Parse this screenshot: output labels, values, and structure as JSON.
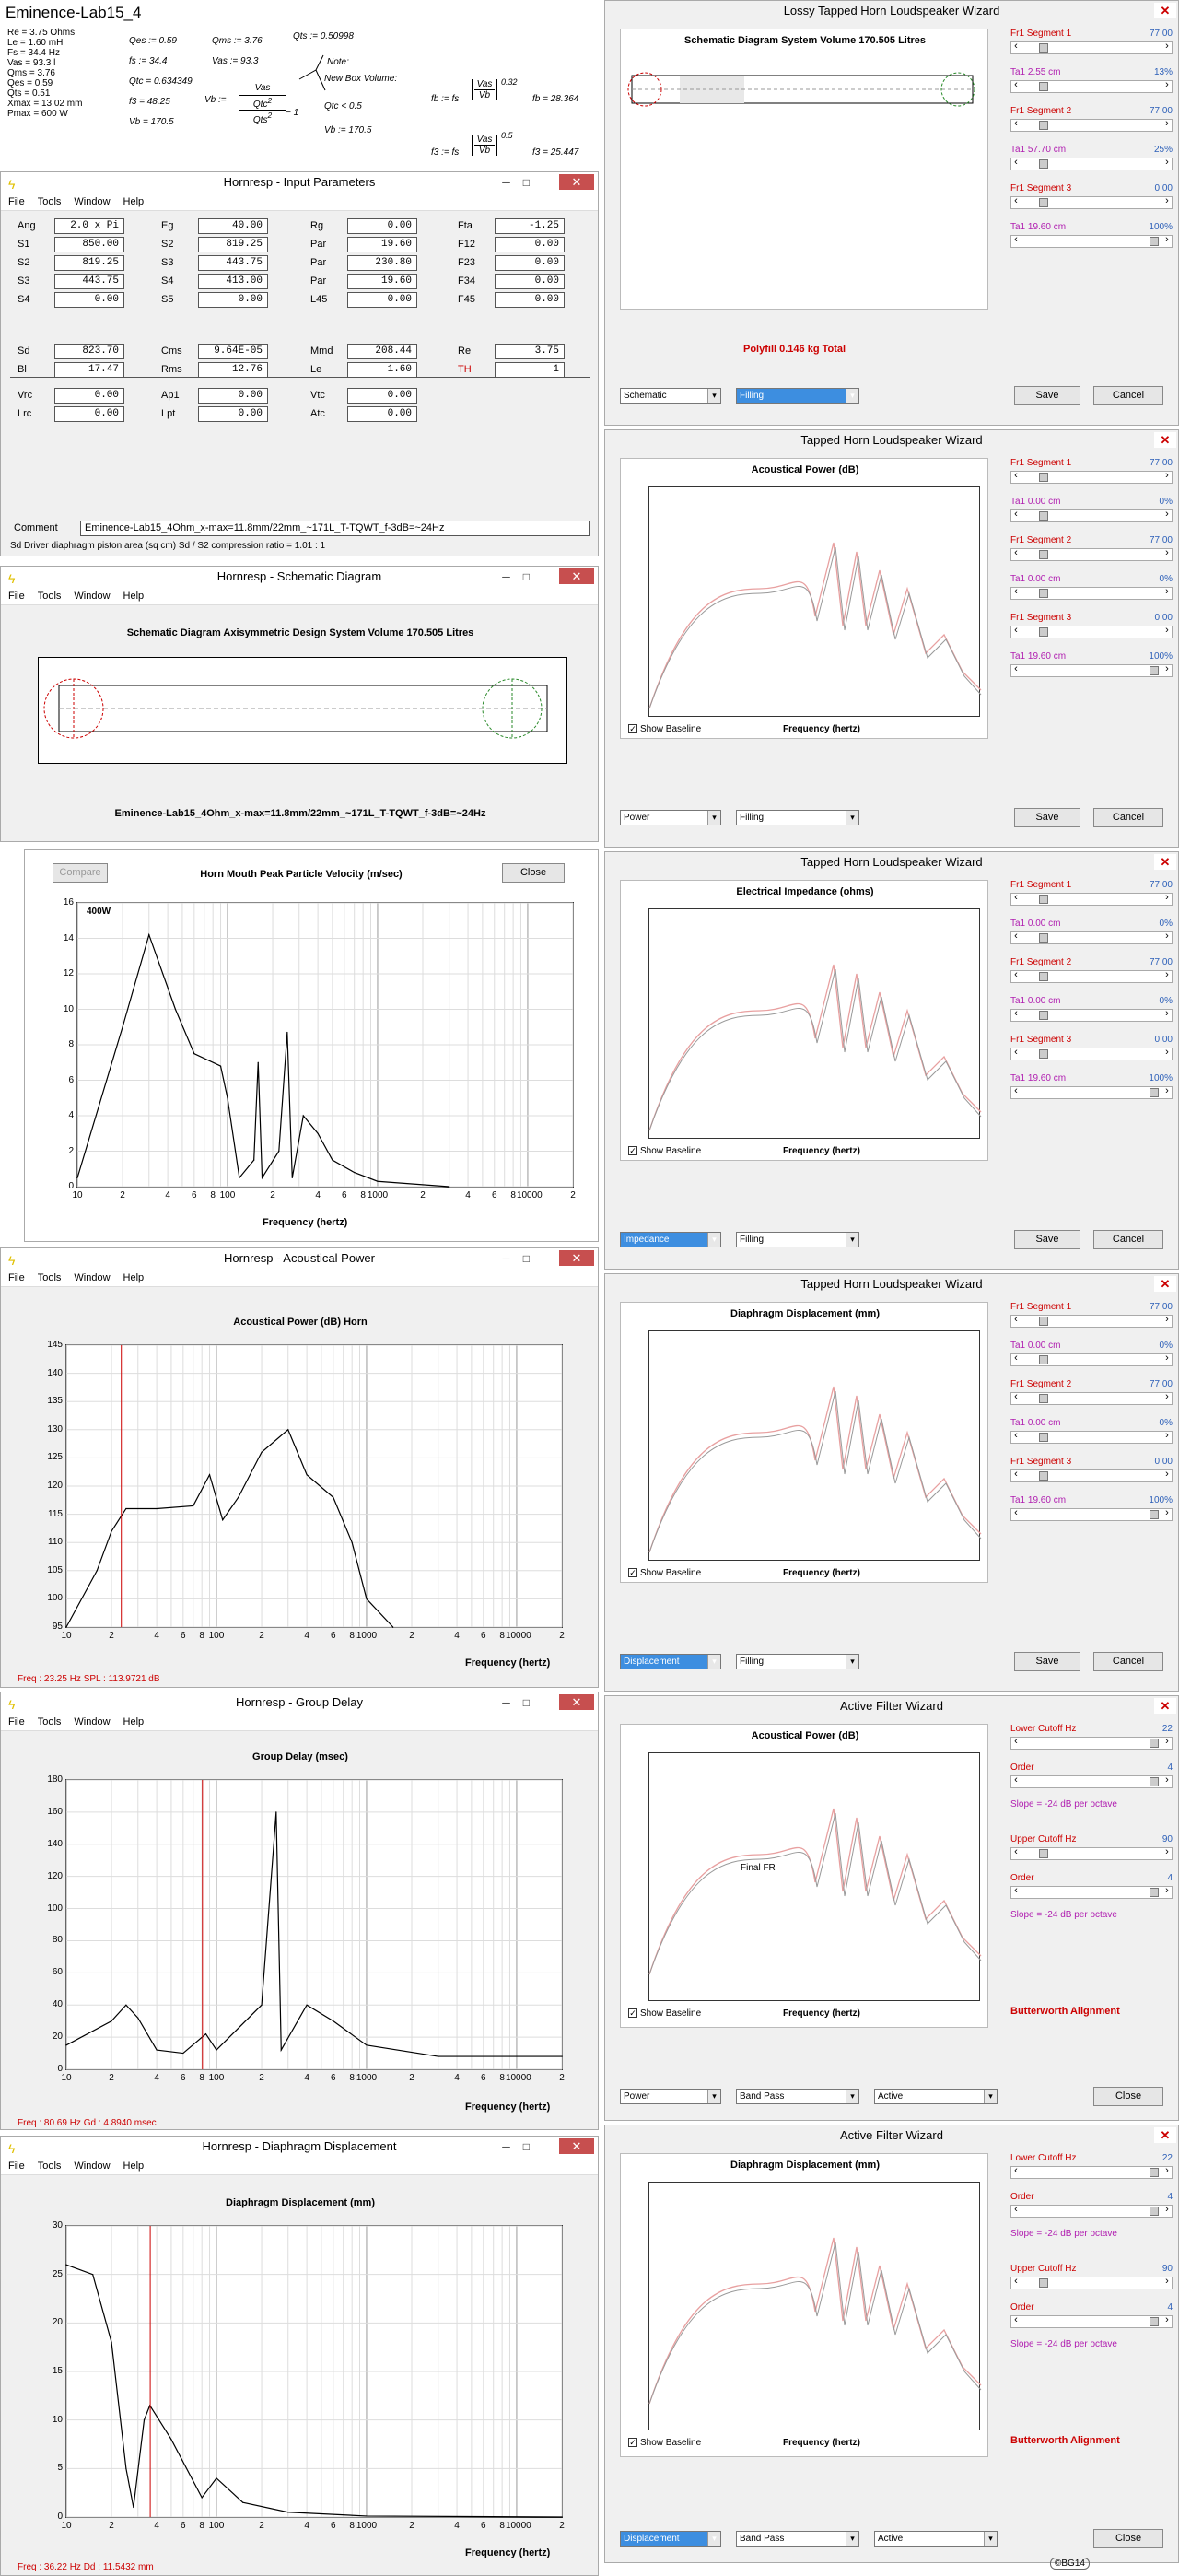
{
  "summary": {
    "title": "Eminence-Lab15_4",
    "col1": [
      "Re = 3.75 Ohms",
      "Le = 1.60 mH",
      "Fs = 34.4 Hz",
      "Vas = 93.3 l",
      "Qms = 3.76",
      "Qes = 0.59",
      "Qts = 0.51",
      "Xmax = 13.02 mm",
      "Pmax = 600 W"
    ],
    "col2a": [
      "Qes := 0.59",
      "fs := 34.4",
      "Qtc = 0.634349",
      "f3 = 48.25",
      "Vb = 170.5"
    ],
    "col2b": [
      "Qms := 3.76",
      "Vas := 93.3"
    ],
    "qts": "Qts := 0.50998",
    "vb_label": "Vb :=",
    "note": "Note:",
    "newbox": "New Box Volume:",
    "qtc_lt": "Qtc < 0.5",
    "vb2": "Vb := 170.5",
    "fb_label": "fb := fs",
    "fb_exp": "0.32",
    "fb_val": "fb = 28.364",
    "f3_label": "f3 := fs",
    "f3_exp": "0.5",
    "f3_val": "f3 = 25.447",
    "frac_top": "Vas",
    "frac_bot": "Vb",
    "qtc2": "Qtc",
    "sq": "2",
    "minus1": "− 1",
    "qts2": "Qts"
  },
  "input_params": {
    "title": "Hornresp - Input Parameters",
    "menu": [
      "File",
      "Tools",
      "Window",
      "Help"
    ],
    "rows": [
      [
        [
          "Ang",
          "2.0 x Pi"
        ],
        [
          "Eg",
          "40.00"
        ],
        [
          "Rg",
          "0.00"
        ],
        [
          "Fta",
          "-1.25"
        ]
      ],
      [
        [
          "S1",
          "850.00"
        ],
        [
          "S2",
          "819.25"
        ],
        [
          "Par",
          "19.60"
        ],
        [
          "F12",
          "0.00"
        ]
      ],
      [
        [
          "S2",
          "819.25"
        ],
        [
          "S3",
          "443.75"
        ],
        [
          "Par",
          "230.80"
        ],
        [
          "F23",
          "0.00"
        ]
      ],
      [
        [
          "S3",
          "443.75"
        ],
        [
          "S4",
          "413.00"
        ],
        [
          "Par",
          "19.60"
        ],
        [
          "F34",
          "0.00"
        ]
      ],
      [
        [
          "S4",
          "0.00"
        ],
        [
          "S5",
          "0.00"
        ],
        [
          "L45",
          "0.00"
        ],
        [
          "F45",
          "0.00"
        ]
      ],
      [
        [
          "Sd",
          "823.70"
        ],
        [
          "Cms",
          "9.64E-05"
        ],
        [
          "Mmd",
          "208.44"
        ],
        [
          "Re",
          "3.75"
        ]
      ],
      [
        [
          "Bl",
          "17.47"
        ],
        [
          "Rms",
          "12.76"
        ],
        [
          "Le",
          "1.60"
        ],
        [
          "TH",
          "1"
        ]
      ],
      [
        [
          "Vrc",
          "0.00"
        ],
        [
          "Ap1",
          "0.00"
        ],
        [
          "Vtc",
          "0.00"
        ]
      ],
      [
        [
          "Lrc",
          "0.00"
        ],
        [
          "Lpt",
          "0.00"
        ],
        [
          "Atc",
          "0.00"
        ]
      ]
    ],
    "comment_label": "Comment",
    "comment": "Eminence-Lab15_4Ohm_x-max=11.8mm/22mm_~171L_T-TQWT_f-3dB=~24Hz",
    "status": "Sd   Driver diaphragm piston area (sq cm)   Sd / S2 compression ratio = 1.01 : 1"
  },
  "schematic": {
    "title": "Hornresp - Schematic Diagram",
    "menu": [
      "File",
      "Tools",
      "Window",
      "Help"
    ],
    "heading": "Schematic Diagram   Axisymmetric Design   System Volume 170.505 Litres",
    "caption": "Eminence-Lab15_4Ohm_x-max=11.8mm/22mm_~171L_T-TQWT_f-3dB=~24Hz"
  },
  "velocity": {
    "compare": "Compare",
    "title": "Horn Mouth Peak Particle Velocity (m/sec)",
    "close": "Close",
    "legend": "400W",
    "xlabel": "Frequency (hertz)"
  },
  "acoustic": {
    "title": "Hornresp - Acoustical Power",
    "menu": [
      "File",
      "Tools",
      "Window",
      "Help"
    ],
    "heading": "Acoustical Power (dB)   Horn",
    "xlabel": "Frequency (hertz)",
    "status": "Freq : 23.25 Hz      SPL : 113.9721 dB"
  },
  "group": {
    "title": "Hornresp - Group Delay",
    "menu": [
      "File",
      "Tools",
      "Window",
      "Help"
    ],
    "heading": "Group Delay (msec)",
    "xlabel": "Frequency (hertz)",
    "status": "Freq : 80.69 Hz      Gd : 4.8940 msec"
  },
  "diaph": {
    "title": "Hornresp - Diaphragm Displacement",
    "menu": [
      "File",
      "Tools",
      "Window",
      "Help"
    ],
    "heading": "Diaphragm Displacement (mm)",
    "xlabel": "Frequency (hertz)",
    "status": "Freq : 36.22 Hz      Dd : 11.5432 mm"
  },
  "wiz1": {
    "title": "Lossy Tapped Horn Loudspeaker Wizard",
    "heading": "Schematic Diagram   System Volume 170.505 Litres",
    "polyfill": "Polyfill   0.146 kg   Total",
    "dd1": "Schematic",
    "dd2": "Filling",
    "save": "Save",
    "cancel": "Cancel",
    "sliders": [
      [
        "Fr1  Segment 1",
        "77.00"
      ],
      [
        "Ta1  2.55 cm",
        "13%"
      ],
      [
        "Fr1  Segment 2",
        "77.00"
      ],
      [
        "Ta1  57.70 cm",
        "25%"
      ],
      [
        "Fr1  Segment 3",
        "0.00"
      ],
      [
        "Ta1  19.60 cm",
        "100%"
      ]
    ]
  },
  "wiz2": {
    "title": "Tapped Horn Loudspeaker Wizard",
    "heading": "Acoustical Power (dB)",
    "baseline": "Show Baseline",
    "xlabel": "Frequency (hertz)",
    "dd1": "Power",
    "dd2": "Filling",
    "save": "Save",
    "cancel": "Cancel",
    "sliders": [
      [
        "Fr1  Segment 1",
        "77.00"
      ],
      [
        "Ta1  0.00 cm",
        "0%"
      ],
      [
        "Fr1  Segment 2",
        "77.00"
      ],
      [
        "Ta1  0.00 cm",
        "0%"
      ],
      [
        "Fr1  Segment 3",
        "0.00"
      ],
      [
        "Ta1  19.60 cm",
        "100%"
      ]
    ]
  },
  "wiz3": {
    "title": "Tapped Horn Loudspeaker Wizard",
    "heading": "Electrical Impedance (ohms)",
    "baseline": "Show Baseline",
    "xlabel": "Frequency (hertz)",
    "dd1": "Impedance",
    "dd2": "Filling",
    "save": "Save",
    "cancel": "Cancel",
    "sliders": [
      [
        "Fr1  Segment 1",
        "77.00"
      ],
      [
        "Ta1  0.00 cm",
        "0%"
      ],
      [
        "Fr1  Segment 2",
        "77.00"
      ],
      [
        "Ta1  0.00 cm",
        "0%"
      ],
      [
        "Fr1  Segment 3",
        "0.00"
      ],
      [
        "Ta1  19.60 cm",
        "100%"
      ]
    ]
  },
  "wiz4": {
    "title": "Tapped Horn Loudspeaker Wizard",
    "heading": "Diaphragm Displacement (mm)",
    "baseline": "Show Baseline",
    "xlabel": "Frequency (hertz)",
    "dd1": "Displacement",
    "dd2": "Filling",
    "save": "Save",
    "cancel": "Cancel",
    "sliders": [
      [
        "Fr1  Segment 1",
        "77.00"
      ],
      [
        "Ta1  0.00 cm",
        "0%"
      ],
      [
        "Fr1  Segment 2",
        "77.00"
      ],
      [
        "Ta1  0.00 cm",
        "0%"
      ],
      [
        "Fr1  Segment 3",
        "0.00"
      ],
      [
        "Ta1  19.60 cm",
        "100%"
      ]
    ]
  },
  "wiz5": {
    "title": "Active Filter Wizard",
    "heading": "Acoustical Power (dB)",
    "baseline": "Show Baseline",
    "xlabel": "Frequency (hertz)",
    "finalfr": "Final FR",
    "align": "Butterworth Alignment",
    "dd1": "Power",
    "dd2": "Band Pass",
    "dd3": "Active",
    "close": "Close",
    "lower": [
      "Lower Cutoff  Hz",
      "22"
    ],
    "order1": [
      "Order",
      "4"
    ],
    "slope1": "Slope = -24 dB per octave",
    "upper": [
      "Upper Cutoff  Hz",
      "90"
    ],
    "order2": [
      "Order",
      "4"
    ],
    "slope2": "Slope = -24 dB per octave"
  },
  "wiz6": {
    "title": "Active Filter Wizard",
    "heading": "Diaphragm Displacement (mm)",
    "baseline": "Show Baseline",
    "xlabel": "Frequency (hertz)",
    "align": "Butterworth Alignment",
    "dd1": "Displacement",
    "dd2": "Band Pass",
    "dd3": "Active",
    "close": "Close",
    "lower": [
      "Lower Cutoff  Hz",
      "22"
    ],
    "order1": [
      "Order",
      "4"
    ],
    "slope1": "Slope = -24 dB per octave",
    "upper": [
      "Upper Cutoff  Hz",
      "90"
    ],
    "order2": [
      "Order",
      "4"
    ],
    "slope2": "Slope = -24 dB per octave"
  },
  "signature": "©BG14",
  "chart_data": [
    {
      "id": "velocity",
      "type": "line",
      "ylim": [
        0,
        16
      ],
      "yticks": [
        0,
        2,
        4,
        6,
        8,
        10,
        12,
        14,
        16
      ],
      "xticks": [
        "10",
        "2",
        "4",
        "6",
        "8",
        "100",
        "2",
        "4",
        "6",
        "8",
        "1000",
        "2",
        "4",
        "6",
        "8",
        "10000",
        "2"
      ],
      "series": [
        {
          "name": "400W",
          "points": [
            [
              10,
              0.5
            ],
            [
              20,
              9
            ],
            [
              30,
              14.2
            ],
            [
              45,
              10
            ],
            [
              60,
              7.5
            ],
            [
              90,
              6.8
            ],
            [
              100,
              5
            ],
            [
              120,
              0.5
            ],
            [
              150,
              1.5
            ],
            [
              160,
              7
            ],
            [
              170,
              0.5
            ],
            [
              220,
              2
            ],
            [
              250,
              8.7
            ],
            [
              270,
              0.5
            ],
            [
              320,
              4
            ],
            [
              400,
              3
            ],
            [
              500,
              1.5
            ],
            [
              700,
              0.8
            ],
            [
              1000,
              0.3
            ],
            [
              3000,
              0
            ]
          ]
        }
      ]
    },
    {
      "id": "acoustic",
      "type": "line",
      "ylim": [
        95,
        145
      ],
      "yticks": [
        95,
        100,
        105,
        110,
        115,
        120,
        125,
        130,
        135,
        140,
        145
      ],
      "xticks": [
        "10",
        "2",
        "4",
        "6",
        "8",
        "100",
        "2",
        "4",
        "6",
        "8",
        "1000",
        "2",
        "4",
        "6",
        "8",
        "10000",
        "2"
      ],
      "series": [
        {
          "name": "Horn",
          "points": [
            [
              10,
              95
            ],
            [
              16,
              105
            ],
            [
              20,
              112
            ],
            [
              25,
              116
            ],
            [
              40,
              116
            ],
            [
              70,
              116.5
            ],
            [
              90,
              122
            ],
            [
              110,
              114
            ],
            [
              140,
              118
            ],
            [
              200,
              126
            ],
            [
              300,
              130
            ],
            [
              400,
              122
            ],
            [
              600,
              118
            ],
            [
              800,
              110
            ],
            [
              1000,
              100
            ],
            [
              1500,
              95
            ]
          ]
        }
      ]
    },
    {
      "id": "group",
      "type": "line",
      "ylim": [
        0,
        180
      ],
      "yticks": [
        0,
        20,
        40,
        60,
        80,
        100,
        120,
        140,
        160,
        180
      ],
      "xticks": [
        "10",
        "2",
        "4",
        "6",
        "8",
        "100",
        "2",
        "4",
        "6",
        "8",
        "1000",
        "2",
        "4",
        "6",
        "8",
        "10000",
        "2"
      ],
      "series": [
        {
          "name": "Gd",
          "points": [
            [
              10,
              15
            ],
            [
              20,
              30
            ],
            [
              25,
              40
            ],
            [
              30,
              32
            ],
            [
              40,
              12
            ],
            [
              60,
              10
            ],
            [
              85,
              22
            ],
            [
              100,
              12
            ],
            [
              200,
              40
            ],
            [
              250,
              160
            ],
            [
              270,
              12
            ],
            [
              400,
              40
            ],
            [
              600,
              30
            ],
            [
              1000,
              15
            ],
            [
              3000,
              8
            ],
            [
              20000,
              8
            ]
          ]
        }
      ]
    },
    {
      "id": "diaph",
      "type": "line",
      "ylim": [
        0,
        30
      ],
      "yticks": [
        0,
        5,
        10,
        15,
        20,
        25,
        30
      ],
      "xticks": [
        "10",
        "2",
        "4",
        "6",
        "8",
        "100",
        "2",
        "4",
        "6",
        "8",
        "1000",
        "2",
        "4",
        "6",
        "8",
        "10000",
        "2"
      ],
      "series": [
        {
          "name": "Dd",
          "points": [
            [
              10,
              26
            ],
            [
              15,
              25
            ],
            [
              20,
              18
            ],
            [
              25,
              5
            ],
            [
              28,
              1
            ],
            [
              33,
              10
            ],
            [
              36,
              11.5
            ],
            [
              50,
              8
            ],
            [
              80,
              2
            ],
            [
              100,
              4
            ],
            [
              150,
              1.5
            ],
            [
              300,
              0.5
            ],
            [
              1000,
              0.1
            ],
            [
              20000,
              0
            ]
          ]
        }
      ]
    }
  ],
  "colors": {
    "red_curve": "#e8a0a0",
    "window_bg": "#f0f0f0",
    "close_red": "#c74f4f",
    "highlight": "#3d8ee0"
  }
}
